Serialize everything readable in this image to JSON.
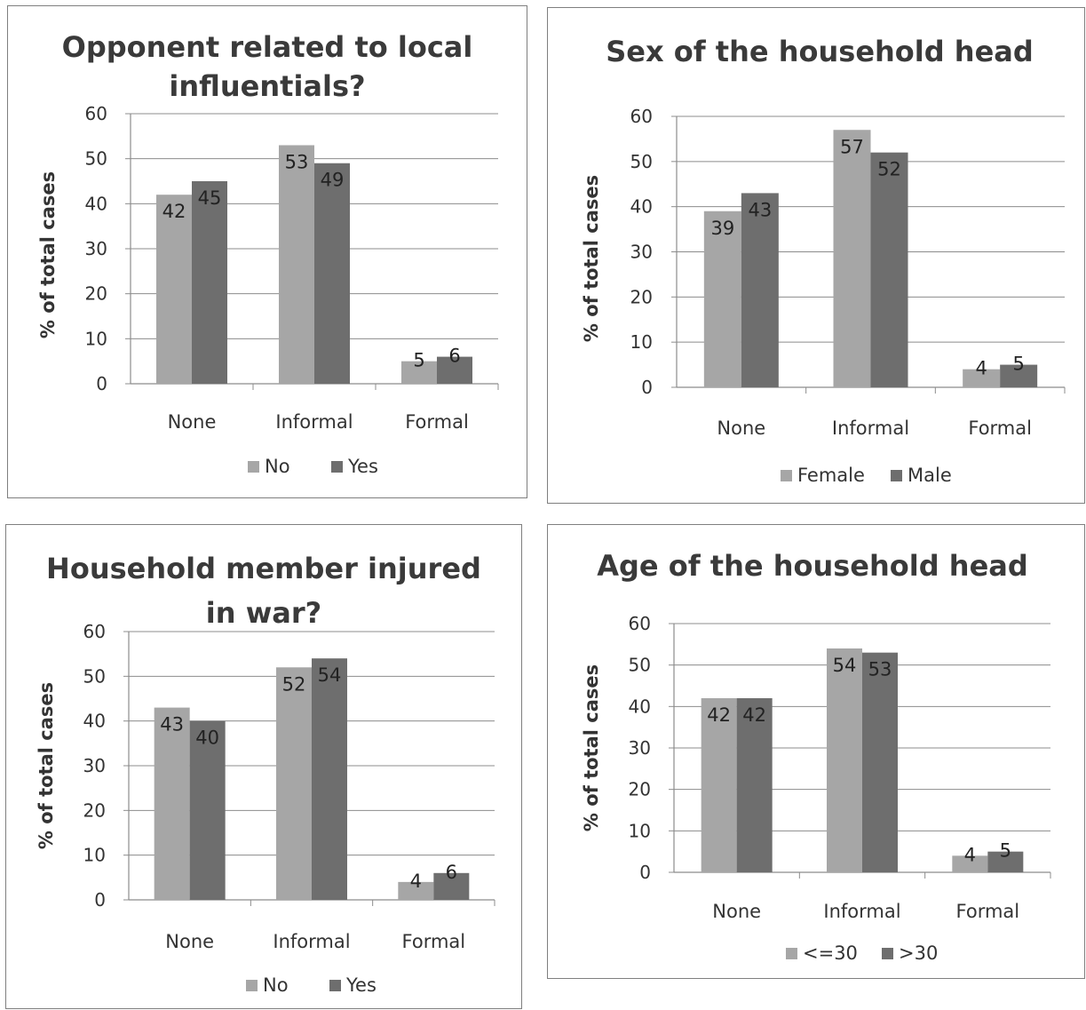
{
  "chart_data": [
    {
      "type": "bar",
      "title": [
        "Opponent related to local",
        "influentials?"
      ],
      "categories": [
        "None",
        "Informal",
        "Formal"
      ],
      "series": [
        {
          "name": "No",
          "values": [
            42,
            53,
            5
          ]
        },
        {
          "name": "Yes",
          "values": [
            45,
            49,
            6
          ]
        }
      ],
      "ylabel": "% of total cases",
      "ylim": [
        0,
        60
      ],
      "yticks": [
        0,
        10,
        20,
        30,
        40,
        50,
        60
      ],
      "legend": "bottom",
      "grid": true,
      "colors": [
        "#a6a6a6",
        "#6e6e6e"
      ]
    },
    {
      "type": "bar",
      "title": [
        "Sex of the household head"
      ],
      "categories": [
        "None",
        "Informal",
        "Formal"
      ],
      "series": [
        {
          "name": "Female",
          "values": [
            39,
            57,
            4
          ]
        },
        {
          "name": "Male",
          "values": [
            43,
            52,
            5
          ]
        }
      ],
      "ylabel": "% of total cases",
      "ylim": [
        0,
        60
      ],
      "yticks": [
        0,
        10,
        20,
        30,
        40,
        50,
        60
      ],
      "legend": "bottom",
      "grid": true,
      "colors": [
        "#a6a6a6",
        "#6e6e6e"
      ]
    },
    {
      "type": "bar",
      "title": [
        "Household member injured",
        "in war?"
      ],
      "categories": [
        "None",
        "Informal",
        "Formal"
      ],
      "series": [
        {
          "name": "No",
          "values": [
            43,
            52,
            4
          ]
        },
        {
          "name": "Yes",
          "values": [
            40,
            54,
            6
          ]
        }
      ],
      "ylabel": "% of total cases",
      "ylim": [
        0,
        60
      ],
      "yticks": [
        0,
        10,
        20,
        30,
        40,
        50,
        60
      ],
      "legend": "bottom",
      "grid": true,
      "colors": [
        "#a6a6a6",
        "#6e6e6e"
      ]
    },
    {
      "type": "bar",
      "title": [
        "Age of the household head"
      ],
      "categories": [
        "None",
        "Informal",
        "Formal"
      ],
      "series": [
        {
          "name": "<=30",
          "values": [
            42,
            54,
            4
          ]
        },
        {
          "name": ">30",
          "values": [
            42,
            53,
            5
          ]
        }
      ],
      "ylabel": "% of total cases",
      "ylim": [
        0,
        60
      ],
      "yticks": [
        0,
        10,
        20,
        30,
        40,
        50,
        60
      ],
      "legend": "bottom",
      "grid": true,
      "colors": [
        "#a6a6a6",
        "#6e6e6e"
      ]
    }
  ]
}
